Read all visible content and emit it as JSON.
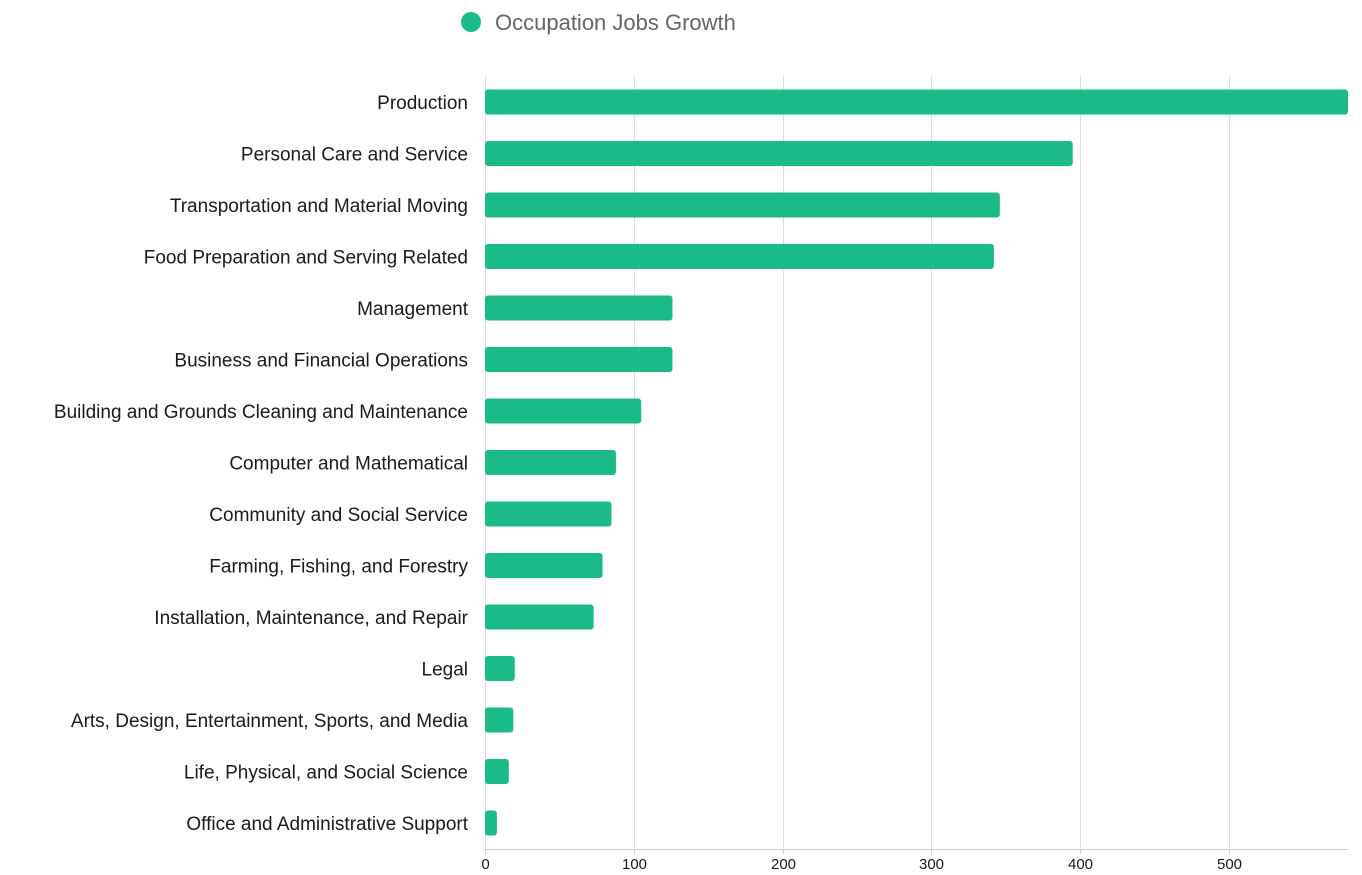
{
  "chart_data": {
    "type": "bar",
    "orientation": "horizontal",
    "categories": [
      "Production",
      "Personal Care and Service",
      "Transportation and Material Moving",
      "Food Preparation and Serving Related",
      "Management",
      "Business and Financial Operations",
      "Building and Grounds Cleaning and Maintenance",
      "Computer and Mathematical",
      "Community and Social Service",
      "Farming, Fishing, and Forestry",
      "Installation, Maintenance, and Repair",
      "Legal",
      "Arts, Design, Entertainment, Sports, and Media",
      "Life, Physical, and Social Science",
      "Office and Administrative Support"
    ],
    "series": [
      {
        "name": "Occupation Jobs Growth",
        "color": "#1bba89",
        "values": [
          580,
          395,
          346,
          342,
          126,
          126,
          105,
          88,
          85,
          79,
          73,
          20,
          19,
          16,
          8
        ]
      }
    ],
    "title": "",
    "xlabel": "",
    "ylabel": "",
    "xlim": [
      0,
      580
    ],
    "xticks": [
      0,
      100,
      200,
      300,
      400,
      500
    ],
    "tick_labels": [
      "0",
      "100",
      "200",
      "300",
      "400",
      "500"
    ],
    "grid": true,
    "legend_position": "top"
  }
}
